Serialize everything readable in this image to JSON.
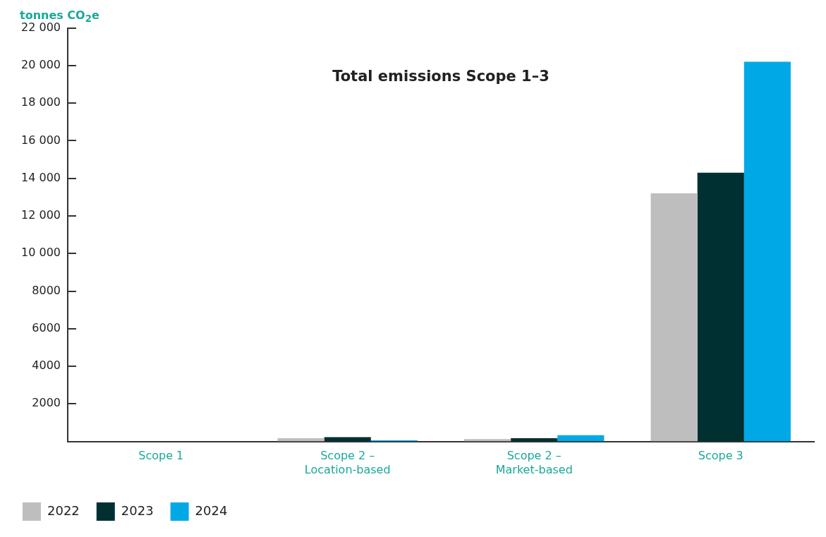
{
  "chart_data": {
    "type": "bar",
    "title": "Total emissions Scope 1–3",
    "ylabel": "tonnes CO$_{2}$e",
    "categories": [
      "Scope 1",
      "Scope 2 – Location-based",
      "Scope 2 – Market-based",
      "Scope 3"
    ],
    "series": [
      {
        "name": "2022",
        "color": "#bebebe",
        "values": [
          0,
          170,
          130,
          13200
        ]
      },
      {
        "name": "2023",
        "color": "#003032",
        "values": [
          0,
          230,
          170,
          14300
        ]
      },
      {
        "name": "2024",
        "color": "#00a9e6",
        "values": [
          0,
          60,
          330,
          20200
        ]
      }
    ],
    "ylim": [
      0,
      22000
    ],
    "yticks": [
      {
        "value": 2000,
        "label": "2000"
      },
      {
        "value": 4000,
        "label": "4000"
      },
      {
        "value": 6000,
        "label": "6000"
      },
      {
        "value": 8000,
        "label": "8000"
      },
      {
        "value": 10000,
        "label": "10 000"
      },
      {
        "value": 12000,
        "label": "12 000"
      },
      {
        "value": 14000,
        "label": "14 000"
      },
      {
        "value": 16000,
        "label": "16 000"
      },
      {
        "value": 18000,
        "label": "18 000"
      },
      {
        "value": 20000,
        "label": "20 000"
      },
      {
        "value": 22000,
        "label": "22 000"
      }
    ],
    "grid": false,
    "legend": "bottom left"
  }
}
